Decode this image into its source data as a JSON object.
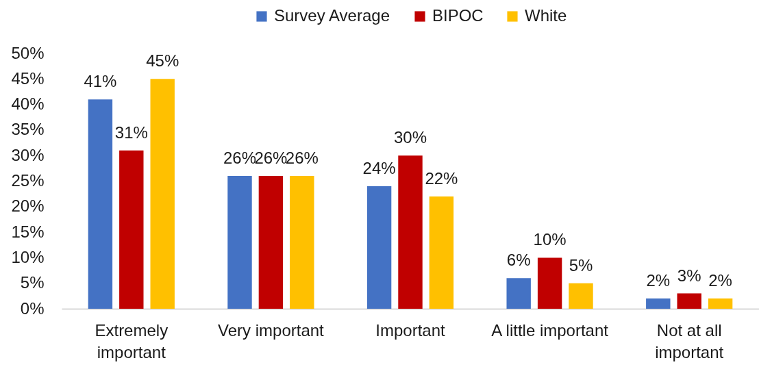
{
  "chart_data": {
    "type": "bar",
    "categories": [
      "Extremely important",
      "Very important",
      "Important",
      "A little important",
      "Not at all important"
    ],
    "series": [
      {
        "name": "Survey Average",
        "color": "#4472c4",
        "values": [
          41,
          26,
          24,
          6,
          2
        ],
        "value_labels": [
          "41%",
          "26%",
          "24%",
          "6%",
          "2%"
        ]
      },
      {
        "name": "BIPOC",
        "color": "#c00000",
        "values": [
          31,
          26,
          30,
          10,
          3
        ],
        "value_labels": [
          "31%",
          "26%",
          "30%",
          "10%",
          "3%"
        ]
      },
      {
        "name": "White",
        "color": "#ffc000",
        "values": [
          45,
          26,
          22,
          5,
          2
        ],
        "value_labels": [
          "45%",
          "26%",
          "22%",
          "5%",
          "2%"
        ]
      }
    ],
    "ylim": [
      0,
      50
    ],
    "yticks": [
      {
        "value": 0,
        "label": "0%"
      },
      {
        "value": 5,
        "label": "5%"
      },
      {
        "value": 10,
        "label": "10%"
      },
      {
        "value": 15,
        "label": "15%"
      },
      {
        "value": 20,
        "label": "20%"
      },
      {
        "value": 25,
        "label": "25%"
      },
      {
        "value": 30,
        "label": "30%"
      },
      {
        "value": 35,
        "label": "35%"
      },
      {
        "value": 40,
        "label": "40%"
      },
      {
        "value": 45,
        "label": "45%"
      },
      {
        "value": 50,
        "label": "50%"
      }
    ],
    "legend": "top"
  }
}
